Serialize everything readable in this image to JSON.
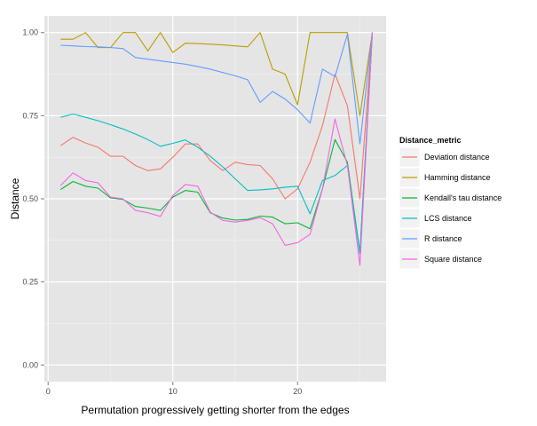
{
  "chart_data": {
    "type": "line",
    "title": "",
    "xlabel": "Permutation progressively getting shorter from the edges",
    "ylabel": "Distance",
    "xlim": [
      -0.3,
      27.1
    ],
    "ylim": [
      -0.05,
      1.05
    ],
    "x_ticks": [
      0,
      10,
      20
    ],
    "x_tick_labels": [
      "0",
      "10",
      "20"
    ],
    "y_ticks": [
      0,
      0.25,
      0.5,
      0.75,
      1.0
    ],
    "y_tick_labels": [
      "0.00",
      "0.25",
      "0.50",
      "0.75",
      "1.00"
    ],
    "grid": true,
    "legend_position": "right",
    "legend_title": "Distance_metric",
    "x": [
      1,
      2,
      3,
      4,
      5,
      6,
      7,
      8,
      9,
      10,
      11,
      12,
      13,
      14,
      15,
      16,
      17,
      18,
      19,
      20,
      21,
      22,
      23,
      24,
      25,
      26
    ],
    "series": [
      {
        "name": "Deviation distance",
        "color": "#F8766D",
        "values": [
          0.66,
          0.685,
          0.668,
          0.655,
          0.628,
          0.628,
          0.6,
          0.585,
          0.59,
          0.625,
          0.665,
          0.665,
          0.615,
          0.585,
          0.61,
          0.603,
          0.6,
          0.56,
          0.5,
          0.53,
          0.61,
          0.72,
          0.875,
          0.78,
          0.5,
          1.0
        ]
      },
      {
        "name": "Hamming distance",
        "color": "#B79F00",
        "values": [
          0.98,
          0.98,
          1.0,
          0.955,
          0.955,
          1.0,
          1.0,
          0.945,
          1.0,
          0.94,
          0.968,
          0.967,
          0.965,
          0.963,
          0.96,
          0.957,
          1.0,
          0.89,
          0.875,
          0.783,
          1.0,
          1.0,
          1.0,
          1.0,
          0.75,
          1.0
        ]
      },
      {
        "name": "Kendall's tau distance",
        "color": "#00BA38",
        "values": [
          0.528,
          0.552,
          0.538,
          0.532,
          0.503,
          0.498,
          0.477,
          0.472,
          0.465,
          0.505,
          0.525,
          0.52,
          0.458,
          0.442,
          0.436,
          0.438,
          0.448,
          0.445,
          0.425,
          0.428,
          0.41,
          0.53,
          0.678,
          0.61,
          0.338,
          1.0
        ]
      },
      {
        "name": "LCS distance",
        "color": "#00BFC4",
        "values": [
          0.745,
          0.755,
          0.745,
          0.735,
          0.723,
          0.71,
          0.695,
          0.678,
          0.658,
          0.667,
          0.677,
          0.655,
          0.628,
          0.596,
          0.56,
          0.525,
          0.527,
          0.53,
          0.535,
          0.538,
          0.455,
          0.555,
          0.57,
          0.6,
          0.335,
          1.0
        ]
      },
      {
        "name": "R distance",
        "color": "#619CFF",
        "values": [
          0.962,
          0.96,
          0.958,
          0.957,
          0.955,
          0.952,
          0.925,
          0.92,
          0.915,
          0.91,
          0.905,
          0.898,
          0.89,
          0.88,
          0.87,
          0.858,
          0.79,
          0.823,
          0.8,
          0.768,
          0.728,
          0.89,
          0.868,
          0.995,
          0.665,
          1.0
        ]
      },
      {
        "name": "Square distance",
        "color": "#F564E3",
        "values": [
          0.54,
          0.578,
          0.555,
          0.548,
          0.505,
          0.5,
          0.465,
          0.458,
          0.447,
          0.51,
          0.543,
          0.538,
          0.46,
          0.435,
          0.43,
          0.435,
          0.443,
          0.425,
          0.36,
          0.368,
          0.393,
          0.53,
          0.74,
          0.6,
          0.3,
          1.0
        ]
      }
    ]
  }
}
